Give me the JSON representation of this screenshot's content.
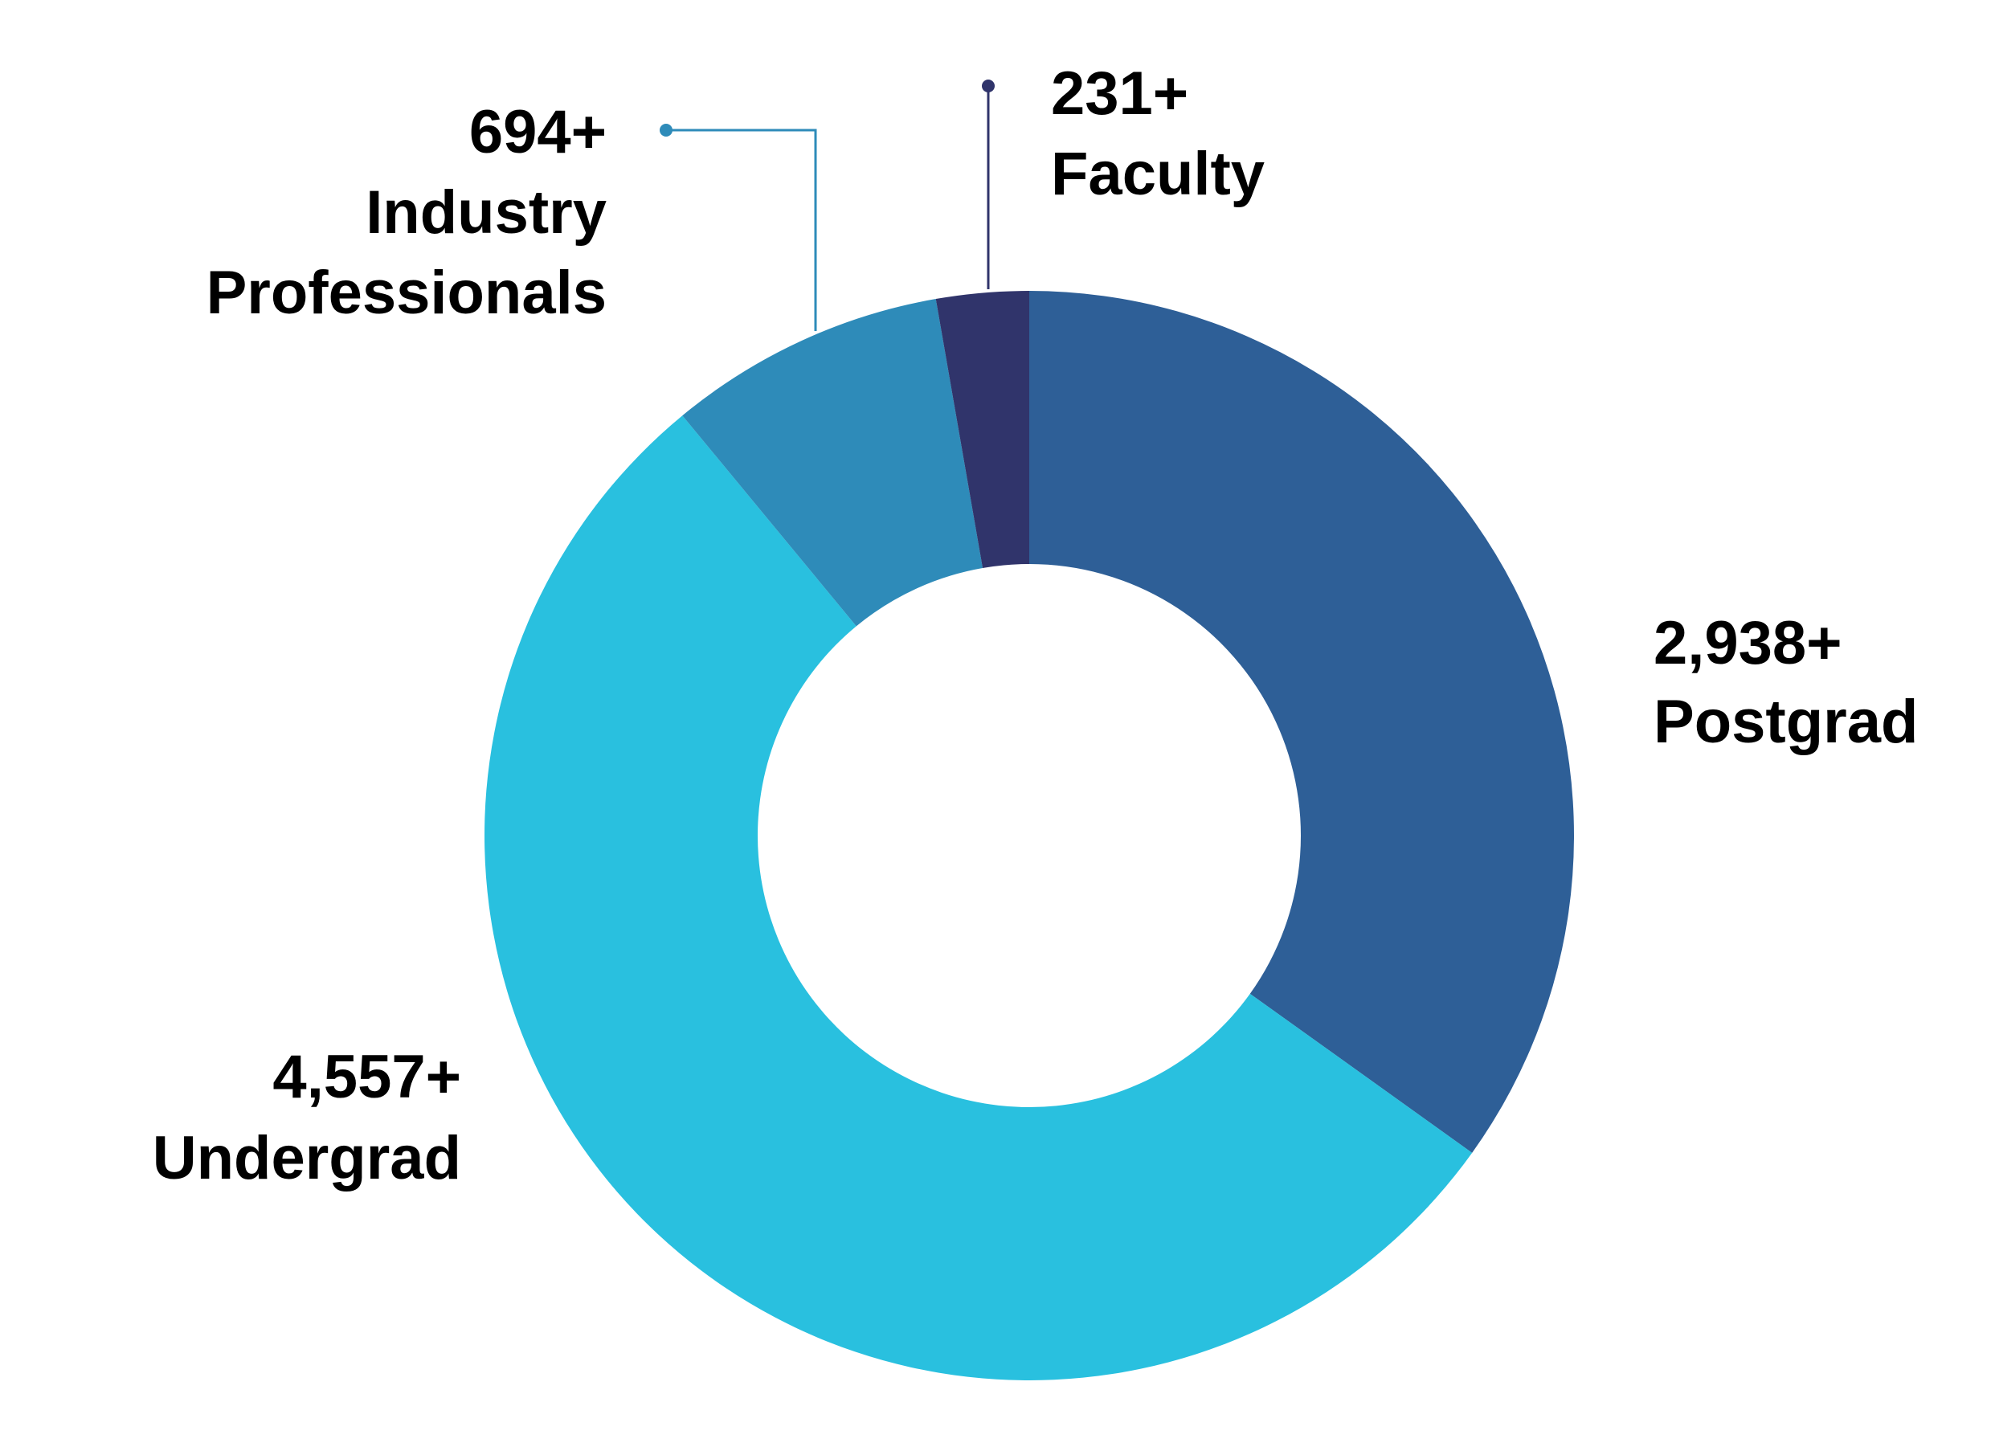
{
  "chart_data": {
    "type": "pie",
    "variant": "donut",
    "slices": [
      {
        "value": 2938,
        "display_value": "2,938+",
        "label": "Postgrad",
        "color": "#2e5f97"
      },
      {
        "value": 4557,
        "display_value": "4,557+",
        "label": "Undergrad",
        "color": "#29c0df"
      },
      {
        "value": 694,
        "display_value": "694+",
        "label_lines": [
          "Industry",
          "Professionals"
        ],
        "color": "#2e8bb9"
      },
      {
        "value": 231,
        "display_value": "231+",
        "label": "Faculty",
        "color": "#30346b"
      }
    ],
    "start_angle": "top, clockwise",
    "legend": "none"
  }
}
